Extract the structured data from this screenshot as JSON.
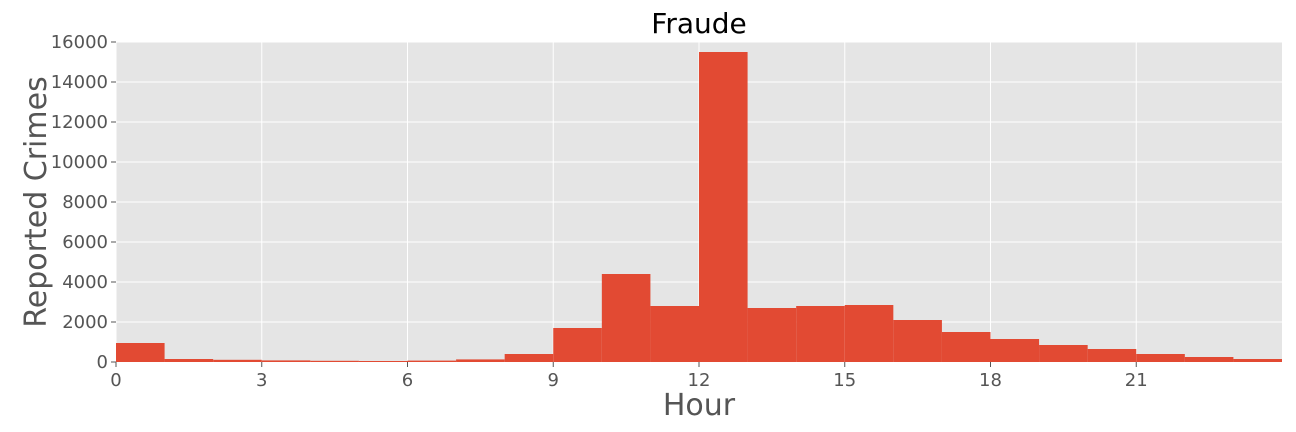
{
  "chart_data": {
    "type": "bar",
    "title": "Fraude",
    "xlabel": "Hour",
    "ylabel": "Reported Crimes",
    "xlim": [
      0,
      24
    ],
    "ylim": [
      0,
      16000
    ],
    "grid": true,
    "colors": {
      "bar": "#E24A33",
      "plot_bg": "#E5E5E5",
      "grid": "#FFFFFF",
      "text": "#555555"
    },
    "xticks": [
      0,
      3,
      6,
      9,
      12,
      15,
      18,
      21
    ],
    "yticks": [
      0,
      2000,
      4000,
      6000,
      8000,
      10000,
      12000,
      14000,
      16000
    ],
    "bins": [
      0,
      1,
      2,
      3,
      4,
      5,
      6,
      7,
      8,
      9,
      10,
      11,
      12,
      13,
      14,
      15,
      16,
      17,
      18,
      19,
      20,
      21,
      22,
      23
    ],
    "values": [
      950,
      150,
      110,
      80,
      60,
      50,
      70,
      130,
      400,
      1700,
      4400,
      2800,
      15500,
      2700,
      2800,
      2850,
      2100,
      1500,
      1150,
      850,
      650,
      400,
      250,
      150
    ]
  }
}
